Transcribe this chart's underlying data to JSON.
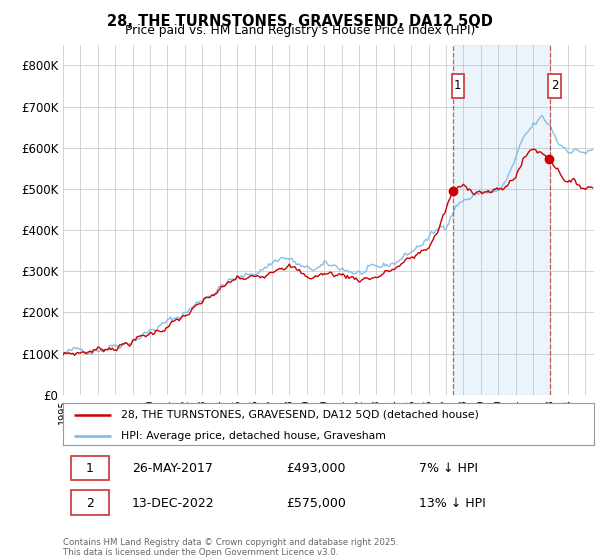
{
  "title": "28, THE TURNSTONES, GRAVESEND, DA12 5QD",
  "subtitle": "Price paid vs. HM Land Registry's House Price Index (HPI)",
  "legend_line1": "28, THE TURNSTONES, GRAVESEND, DA12 5QD (detached house)",
  "legend_line2": "HPI: Average price, detached house, Gravesham",
  "annotation1_date": "26-MAY-2017",
  "annotation1_price": 493000,
  "annotation1_pct": "7% ↓ HPI",
  "annotation2_date": "13-DEC-2022",
  "annotation2_price": 575000,
  "annotation2_pct": "13% ↓ HPI",
  "footer": "Contains HM Land Registry data © Crown copyright and database right 2025.\nThis data is licensed under the Open Government Licence v3.0.",
  "hpi_color": "#7ab8e8",
  "hpi_fill_color": "#ddeeff",
  "price_color": "#cc0000",
  "annotation_color": "#cc3333",
  "background_color": "#ffffff",
  "grid_color": "#cccccc",
  "ylim": [
    0,
    850000
  ],
  "yticks": [
    0,
    100000,
    200000,
    300000,
    400000,
    500000,
    600000,
    700000,
    800000
  ],
  "ytick_labels": [
    "£0",
    "£100K",
    "£200K",
    "£300K",
    "£400K",
    "£500K",
    "£600K",
    "£700K",
    "£800K"
  ],
  "t1_year": 2017.397,
  "t2_year": 2022.948,
  "p1": 493000,
  "p2": 575000
}
